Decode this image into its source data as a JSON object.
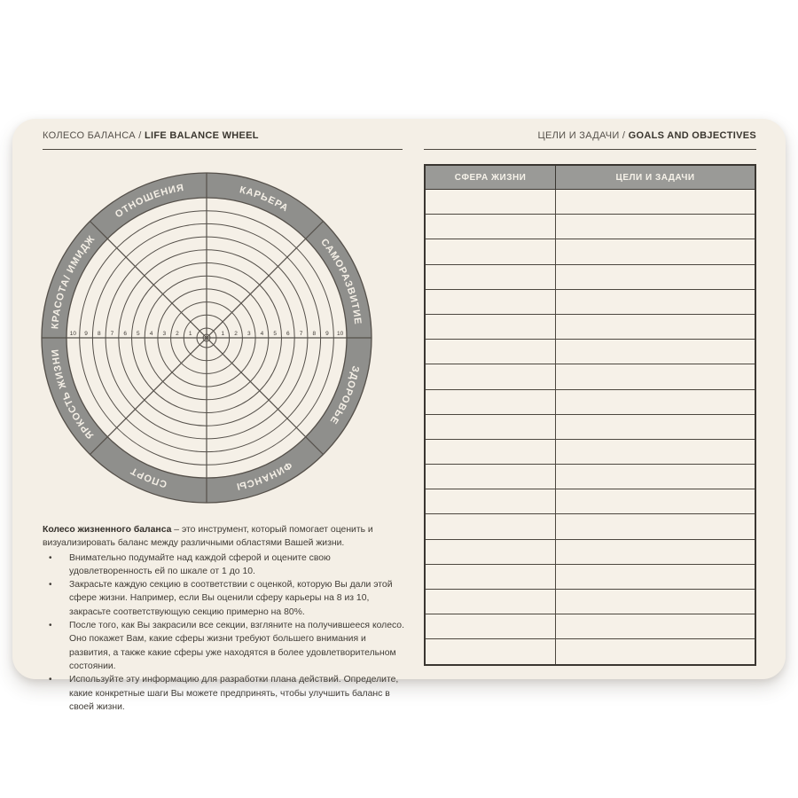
{
  "left_page": {
    "header_ru": "КОЛЕСО БАЛАНСА / ",
    "header_en": "LIFE BALANCE WHEEL"
  },
  "right_page": {
    "header_ru": "ЦЕЛИ И ЗАДАЧИ / ",
    "header_en": "GOALS AND OBJECTIVES"
  },
  "wheel": {
    "sectors": [
      "КАРЬЕРА",
      "САМОРАЗВИТИЕ",
      "ЗДОРОВЬЕ",
      "ФИНАНСЫ",
      "СПОРТ",
      "ЯРКОСТЬ ЖИЗНИ",
      "КРАСОТА/ ИМИДЖ",
      "ОТНОШЕНИЯ"
    ],
    "scale": [
      "1",
      "2",
      "3",
      "4",
      "5",
      "6",
      "7",
      "8",
      "9",
      "10"
    ],
    "rings": 10,
    "colors": {
      "ring": "#8f8f8c",
      "ring_text": "#f4efe6",
      "line": "#55504a",
      "face": "#f5f0e7",
      "number_text": "#3e3a35"
    }
  },
  "instructions": {
    "intro_bold": "Колесо жизненного баланса",
    "intro_rest": " – это инструмент, который помогает оценить и визуализировать баланс между различными областями Вашей жизни.",
    "bullet_char": "•",
    "bullets": [
      "Внимательно подумайте над каждой сферой и оцените свою удовлетворенность ей по шкале от 1 до 10.",
      "Закрасьте каждую секцию в соответствии с оценкой, которую Вы дали этой сфере жизни. Например, если Вы оценили сферу карьеры на 8 из 10, закрасьте соответствующую секцию примерно на 80%.",
      "После того, как Вы закрасили все секции, взгляните на получившееся колесо. Оно покажет Вам, какие сферы жизни требуют большего внимания и развития, а также какие сферы уже находятся в более удовлетворительном состоянии.",
      "Используйте эту информацию для разработки плана действий. Определите, какие конкретные шаги Вы можете предпринять, чтобы улучшить баланс в своей жизни."
    ]
  },
  "table": {
    "header_sphere": "СФЕРА ЖИЗНИ",
    "header_goals": "ЦЕЛИ И ЗАДАЧИ",
    "row_count": 19
  }
}
